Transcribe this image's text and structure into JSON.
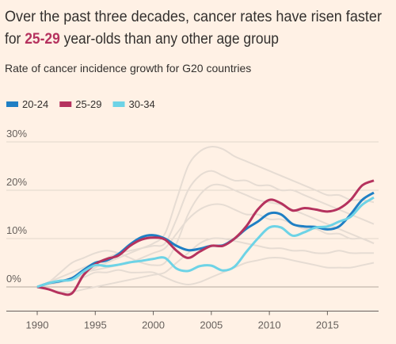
{
  "chart_data": {
    "type": "line",
    "title": [
      "Over the past three decades, cancer rates have risen faster",
      "for ",
      "25-29",
      " year-olds than any other age group"
    ],
    "title_highlight_color": "#b5325e",
    "subtitle": "Rate of cancer incidence growth for G20 countries",
    "x": [
      1990,
      1991,
      1992,
      1993,
      1994,
      1995,
      1996,
      1997,
      1998,
      1999,
      2000,
      2001,
      2002,
      2003,
      2004,
      2005,
      2006,
      2007,
      2008,
      2009,
      2010,
      2011,
      2012,
      2013,
      2014,
      2015,
      2016,
      2017,
      2018,
      2019
    ],
    "xlim": [
      1990,
      2019
    ],
    "xticks": [
      1990,
      1995,
      2000,
      2005,
      2010,
      2015
    ],
    "ylim": [
      -5,
      30
    ],
    "yticks": [
      {
        "value": 0,
        "label": "0%"
      },
      {
        "value": 10,
        "label": "10%"
      },
      {
        "value": 20,
        "label": "20%"
      },
      {
        "value": 30,
        "label": "30%"
      }
    ],
    "grid": true,
    "series": [
      {
        "color": "#e6dcd3",
        "values": [
          0,
          0.5,
          1,
          1.5,
          2.5,
          4,
          5,
          6,
          7,
          8,
          9,
          11,
          18,
          25,
          28,
          29,
          28.5,
          27,
          26,
          25,
          24,
          23,
          22,
          21,
          20,
          19,
          19,
          18,
          18,
          17.5
        ]
      },
      {
        "color": "#e6dcd3",
        "values": [
          0,
          1,
          2,
          3,
          4,
          5,
          6,
          7,
          7.5,
          8,
          8.5,
          9,
          14,
          20,
          23,
          24,
          23,
          22,
          22,
          21,
          21,
          20,
          20,
          19,
          18,
          17,
          16,
          15,
          14,
          13
        ]
      },
      {
        "color": "#e6dcd3",
        "values": [
          0,
          1,
          3,
          5,
          6,
          7,
          7.5,
          7,
          6,
          5,
          4.5,
          5,
          9,
          15,
          19,
          21,
          21,
          20,
          19,
          18,
          17.5,
          17,
          16,
          15,
          14,
          13,
          12,
          11,
          10,
          9
        ]
      },
      {
        "color": "#e6dcd3",
        "values": [
          0,
          0.5,
          1,
          2,
          3,
          3.5,
          4,
          4.5,
          5,
          6,
          7,
          8,
          11,
          14,
          16,
          17,
          17,
          16,
          15,
          15,
          14,
          14,
          13,
          12,
          12,
          11,
          11,
          10,
          10,
          9
        ]
      },
      {
        "color": "#e6dcd3",
        "values": [
          0,
          -0.5,
          -1,
          -1,
          -0.5,
          0,
          0.5,
          1,
          1.5,
          2,
          2.5,
          3,
          5,
          7,
          9,
          10,
          10,
          9.5,
          9,
          8.5,
          8,
          8,
          7.5,
          7.5,
          7,
          7,
          7.5,
          7,
          7,
          7
        ]
      },
      {
        "color": "#e6dcd3",
        "values": [
          0,
          0.5,
          1,
          1.5,
          2,
          3,
          3,
          3.5,
          3,
          3,
          3,
          2,
          1,
          0.5,
          1,
          2,
          3,
          4,
          5,
          5.5,
          6,
          6,
          5.5,
          5,
          4.5,
          4,
          4,
          4,
          4.5,
          5
        ]
      },
      {
        "name": "20-24",
        "color": "#1f7fc4",
        "values": [
          0,
          0.8,
          1.2,
          1.8,
          3.5,
          5.0,
          5.5,
          6.8,
          8.8,
          10.3,
          10.7,
          10,
          8.5,
          7.6,
          7.9,
          8.5,
          8.6,
          10,
          12,
          13.5,
          15.2,
          15,
          13,
          12.5,
          12.4,
          11.9,
          12.5,
          15,
          18,
          19.5
        ]
      },
      {
        "name": "25-29",
        "color": "#b5325e",
        "values": [
          0,
          -0.5,
          -1.3,
          -1.3,
          2.5,
          4.7,
          5.8,
          6.5,
          8.5,
          9.8,
          10.2,
          9.8,
          7.5,
          6.0,
          7.3,
          8.5,
          8.5,
          10,
          12.5,
          16,
          18,
          17.3,
          15.8,
          16.3,
          16,
          15.6,
          16.2,
          18,
          21,
          22
        ]
      },
      {
        "name": "30-34",
        "color": "#6dd3e6",
        "values": [
          0,
          0.8,
          1.3,
          1.5,
          3.2,
          4.5,
          4.3,
          4.6,
          5.1,
          5.4,
          5.8,
          6.0,
          3.8,
          3.3,
          4.3,
          4.4,
          3.4,
          4.2,
          7.2,
          10,
          12.3,
          12.3,
          10.6,
          11.3,
          12.3,
          12.5,
          13.5,
          14.5,
          17,
          18.5
        ]
      }
    ]
  }
}
